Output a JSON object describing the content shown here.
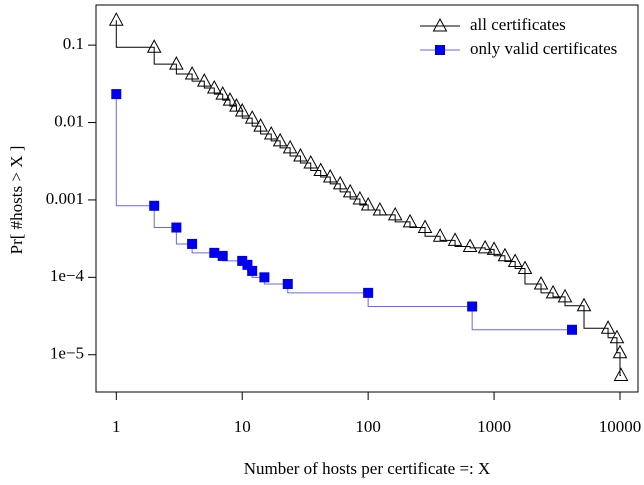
{
  "chart_data": {
    "type": "step",
    "xlabel": "Number of hosts per certificate =: X",
    "ylabel": "Pr[ #hosts > X ]",
    "xscale": "log",
    "yscale": "log",
    "xlim": [
      0.69,
      13900
    ],
    "ylim": [
      3.3e-06,
      0.33
    ],
    "xticks": [
      1,
      10,
      100,
      1000,
      10000
    ],
    "yticks": [
      0.1,
      0.01,
      0.001,
      {
        "value": 0.0001,
        "label": "1e−4"
      },
      {
        "value": 1e-05,
        "label": "1e−5"
      }
    ],
    "legend": "upper right",
    "series": [
      {
        "name": "all certificates",
        "color": "#000000",
        "marker": "triangle",
        "x": [
          1,
          2,
          3,
          4,
          5,
          6,
          7,
          8,
          9,
          10,
          12,
          14,
          17,
          20,
          24,
          29,
          35,
          42,
          50,
          60,
          72,
          86,
          100,
          124,
          164,
          215,
          283,
          373,
          490,
          645,
          849,
          1000,
          1220,
          1470,
          1760,
          2360,
          2940,
          3660,
          5180,
          8040,
          9460,
          10000,
          10190
        ],
        "values": [
          0.21,
          0.094,
          0.0569,
          0.0423,
          0.0343,
          0.0279,
          0.0233,
          0.0195,
          0.0163,
          0.0141,
          0.0114,
          0.009,
          0.0071,
          0.0058,
          0.0047,
          0.0037,
          0.003,
          0.0024,
          0.00198,
          0.00161,
          0.00127,
          0.00103,
          0.00086,
          0.00074,
          0.00064,
          0.00052,
          0.00044,
          0.00034,
          0.0003,
          0.00025,
          0.00024,
          0.00023,
          0.00019,
          0.00016,
          0.00013,
          8.2e-05,
          6.3e-05,
          5.6e-05,
          4.3e-05,
          2.2e-05,
          1.66e-05,
          1.06e-05,
          5.4e-06
        ]
      },
      {
        "name": "only valid certificates",
        "color": "#0000ee",
        "marker": "square",
        "x": [
          1,
          2,
          3,
          4,
          6,
          7,
          10,
          11,
          12,
          15,
          23,
          100,
          670,
          4160
        ],
        "values": [
          0.0233,
          0.00084,
          0.00044,
          0.00027,
          0.000207,
          0.000189,
          0.000163,
          0.000145,
          0.000121,
          0.0001,
          8.2e-05,
          6.3e-05,
          4.2e-05,
          2.1e-05
        ]
      }
    ]
  }
}
